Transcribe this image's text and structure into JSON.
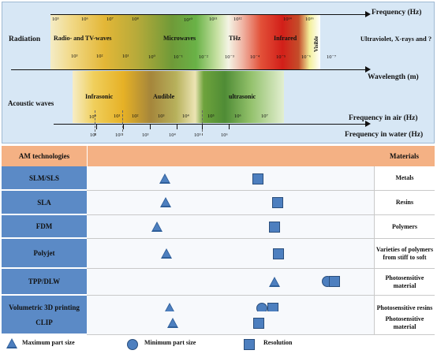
{
  "spectrum": {
    "radiation_label": "Radiation",
    "acoustic_label": "Acoustic waves",
    "frequency_hz_label": "Frequency (Hz)",
    "wavelength_label": "Wavelength (m)",
    "frequency_air_label": "Frequency in air (Hz)",
    "frequency_water_label": "Frequency in water (Hz)",
    "beyond_label": "Ultraviolet, X-rays and ?",
    "visible_label": "Visible",
    "radiation_regions": [
      "Radio- and TV-waves",
      "Microwaves",
      "THz",
      "Infrared"
    ],
    "acoustic_regions": [
      "Infrasonic",
      "Audible",
      "ultrasonic"
    ],
    "frequency_ticks": [
      "10⁵",
      "10⁶",
      "10⁷",
      "10⁸",
      "10¹⁰",
      "10¹¹",
      "10¹²",
      "10¹⁴",
      "10¹⁶"
    ],
    "wavelength_ticks": [
      "10³",
      "10²",
      "10¹",
      "10⁰",
      "10⁻¹",
      "10⁻²",
      "10⁻³",
      "10⁻⁴",
      "10⁻⁵",
      "10⁻⁶",
      "10⁻⁷"
    ],
    "air_ticks": [
      "10⁰",
      "10¹",
      "10²",
      "10³",
      "10⁴",
      "10⁵",
      "10⁶",
      "10⁷"
    ],
    "water_ticks": [
      "10¹",
      "10²",
      "10³",
      "10⁴",
      "10⁵",
      "10⁶"
    ]
  },
  "table": {
    "left_header": "AM technologies",
    "right_header": "Materials",
    "rows": [
      {
        "tech": "SLM/SLS",
        "material": "Metals"
      },
      {
        "tech": "SLA",
        "material": "Resins"
      },
      {
        "tech": "FDM",
        "material": "Polymers"
      },
      {
        "tech": "Polyjet",
        "material": "Varieties of polymers from stiff to soft"
      },
      {
        "tech": "TPP/DLW",
        "material": "Photosensitive material"
      },
      {
        "tech": "Volumetric 3D printing",
        "material": "Photosensitive resins"
      },
      {
        "tech": "CLIP",
        "material": "Photosensitive material"
      }
    ]
  },
  "legend": {
    "max_part_size": "Maximum part size",
    "min_part_size": "Minimum part size",
    "resolution": "Resolution"
  },
  "colors": {
    "tech_cell": "#5b8ac6",
    "header_row": "#f4b184",
    "marker": "#4d7fbf",
    "panel": "#d7e7f5"
  }
}
